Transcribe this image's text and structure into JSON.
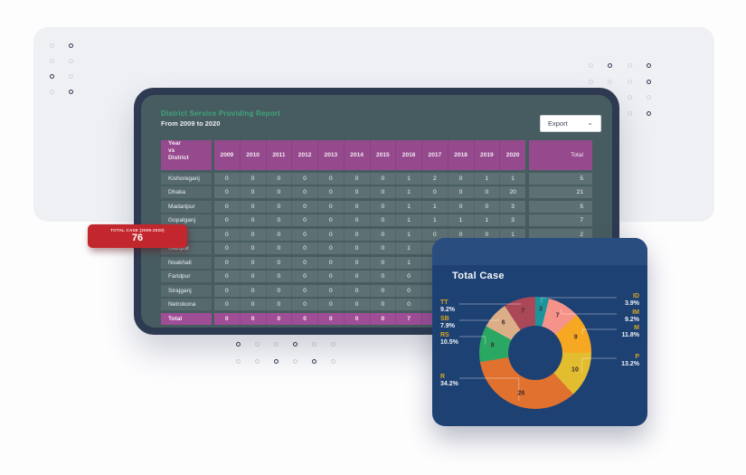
{
  "report_card": {
    "title": "District Service Providing Report",
    "subtitle": "From 2009 to 2020",
    "export_label": "Export",
    "table": {
      "corner_lines": [
        "Year",
        "vs",
        "District"
      ],
      "year_columns": [
        "2009",
        "2010",
        "2011",
        "2012",
        "2013",
        "2014",
        "2015",
        "2016",
        "2017",
        "2018",
        "2019",
        "2020"
      ],
      "total_header": "Total",
      "rows": [
        {
          "district": "Kishoreganj",
          "values": [
            "0",
            "0",
            "0",
            "0",
            "0",
            "0",
            "0",
            "1",
            "2",
            "0",
            "1",
            "1"
          ],
          "total": "5"
        },
        {
          "district": "Dhaka",
          "values": [
            "0",
            "0",
            "0",
            "0",
            "0",
            "0",
            "0",
            "1",
            "0",
            "0",
            "0",
            "20"
          ],
          "total": "21"
        },
        {
          "district": "Madaripur",
          "values": [
            "0",
            "0",
            "0",
            "0",
            "0",
            "0",
            "0",
            "1",
            "1",
            "0",
            "0",
            "3"
          ],
          "total": "5"
        },
        {
          "district": "Gopalganj",
          "values": [
            "0",
            "0",
            "0",
            "0",
            "0",
            "0",
            "0",
            "1",
            "1",
            "1",
            "1",
            "3"
          ],
          "total": "7"
        },
        {
          "district": "Bhola",
          "values": [
            "0",
            "0",
            "0",
            "0",
            "0",
            "0",
            "0",
            "1",
            "0",
            "0",
            "0",
            "1"
          ],
          "total": "2"
        },
        {
          "district": "Gazipur",
          "values": [
            "0",
            "0",
            "0",
            "0",
            "0",
            "0",
            "0",
            "1",
            "",
            "",
            "",
            ""
          ],
          "total": ""
        },
        {
          "district": "Noakhali",
          "values": [
            "0",
            "0",
            "0",
            "0",
            "0",
            "0",
            "0",
            "1",
            "",
            "",
            "",
            ""
          ],
          "total": ""
        },
        {
          "district": "Faridpur",
          "values": [
            "0",
            "0",
            "0",
            "0",
            "0",
            "0",
            "0",
            "0",
            "",
            "",
            "",
            ""
          ],
          "total": ""
        },
        {
          "district": "Sirajganj",
          "values": [
            "0",
            "0",
            "0",
            "0",
            "0",
            "0",
            "0",
            "0",
            "",
            "",
            "",
            ""
          ],
          "total": ""
        },
        {
          "district": "Netrokona",
          "values": [
            "0",
            "0",
            "0",
            "0",
            "0",
            "0",
            "0",
            "0",
            "",
            "",
            "",
            ""
          ],
          "total": ""
        }
      ],
      "total_row": {
        "district": "Total",
        "values": [
          "0",
          "0",
          "0",
          "0",
          "0",
          "0",
          "0",
          "7",
          "",
          "",
          "",
          ""
        ],
        "total": ""
      }
    }
  },
  "badge": {
    "label": "TOTAL CASE (2009-2020)",
    "value": "76"
  },
  "chart_data": {
    "type": "donut",
    "title": "Total Case",
    "total": 76,
    "slices": [
      {
        "label": "ID",
        "value": 3,
        "pct": "3.9%",
        "color": "#1b959b"
      },
      {
        "label": "IM",
        "value": 7,
        "pct": "9.2%",
        "color": "#f5938b"
      },
      {
        "label": "M",
        "value": 9,
        "pct": "11.8%",
        "color": "#f7a823"
      },
      {
        "label": "P",
        "value": 10,
        "pct": "13.2%",
        "color": "#e2bd30"
      },
      {
        "label": "R",
        "value": 26,
        "pct": "34.2%",
        "color": "#e0712f"
      },
      {
        "label": "RS",
        "value": 8,
        "pct": "10.5%",
        "color": "#2aa763"
      },
      {
        "label": "SB",
        "value": 6,
        "pct": "7.9%",
        "color": "#dcae87"
      },
      {
        "label": "TT",
        "value": 7,
        "pct": "9.2%",
        "color": "#aa4858"
      }
    ],
    "legend_left": [
      "TT",
      "SB",
      "RS",
      "R"
    ],
    "legend_right": [
      "ID",
      "IM",
      "M",
      "P"
    ]
  }
}
